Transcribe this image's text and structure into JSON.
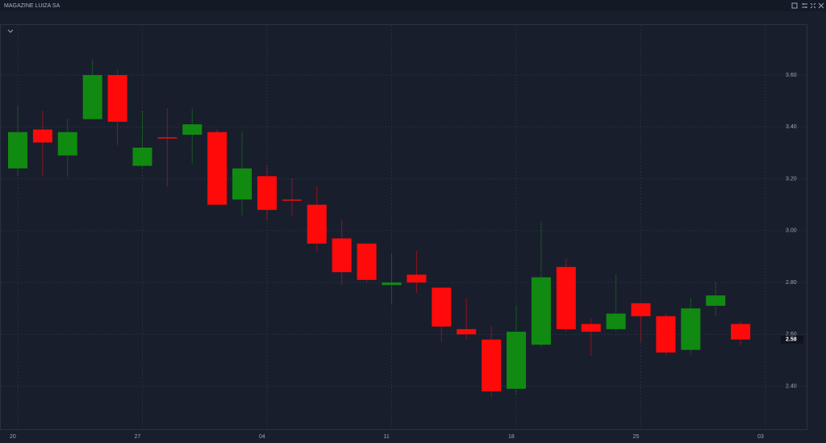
{
  "chart_data": {
    "type": "candlestick",
    "title": "MAGAZINE LUIZA SA",
    "categories": [
      "20",
      null,
      null,
      null,
      null,
      "27",
      null,
      null,
      null,
      null,
      "04",
      null,
      null,
      null,
      null,
      "11",
      null,
      null,
      null,
      null,
      "18",
      null,
      null,
      null,
      null,
      "25",
      null,
      null,
      null,
      null,
      "03"
    ],
    "open": [
      3.24,
      3.39,
      3.29,
      3.43,
      3.6,
      3.25,
      3.36,
      3.37,
      3.38,
      3.12,
      3.21,
      3.12,
      3.1,
      2.97,
      2.95,
      2.79,
      2.83,
      2.78,
      2.62,
      2.58,
      2.39,
      2.56,
      2.86,
      2.64,
      2.62,
      2.72,
      2.67,
      2.54,
      2.71,
      2.64,
      null
    ],
    "high": [
      3.48,
      3.46,
      3.43,
      3.66,
      3.62,
      3.46,
      3.47,
      3.47,
      3.39,
      3.38,
      3.25,
      3.2,
      3.17,
      3.04,
      2.95,
      2.91,
      2.92,
      2.78,
      2.74,
      2.63,
      2.71,
      3.03,
      2.89,
      2.66,
      2.83,
      2.72,
      2.68,
      2.74,
      2.8,
      2.65,
      null
    ],
    "low": [
      3.21,
      3.21,
      3.21,
      3.43,
      3.33,
      3.24,
      3.17,
      3.26,
      3.1,
      3.06,
      3.04,
      3.06,
      2.92,
      2.79,
      2.8,
      2.72,
      2.76,
      2.57,
      2.58,
      2.36,
      2.37,
      2.55,
      2.61,
      2.52,
      2.61,
      2.57,
      2.52,
      2.52,
      2.67,
      2.56,
      null
    ],
    "close": [
      3.38,
      3.34,
      3.38,
      3.6,
      3.42,
      3.32,
      3.36,
      3.41,
      3.1,
      3.24,
      3.08,
      3.12,
      2.95,
      2.84,
      2.81,
      2.8,
      2.8,
      2.63,
      2.6,
      2.38,
      2.61,
      2.82,
      2.62,
      2.61,
      2.68,
      2.67,
      2.53,
      2.7,
      2.75,
      2.58,
      null
    ],
    "up_color": "#118a12",
    "down_color": "#ff0a0a",
    "ylim": [
      2.24,
      3.79
    ],
    "yticks": [
      {
        "value": 2.4,
        "label": "2.40"
      },
      {
        "value": 2.6,
        "label": "2.60"
      },
      {
        "value": 2.8,
        "label": "2.80"
      },
      {
        "value": 3.0,
        "label": "3.00"
      },
      {
        "value": 3.2,
        "label": "3.20"
      },
      {
        "value": 3.4,
        "label": "3.40"
      },
      {
        "value": 3.6,
        "label": "3.60"
      }
    ],
    "grid": true
  }
}
